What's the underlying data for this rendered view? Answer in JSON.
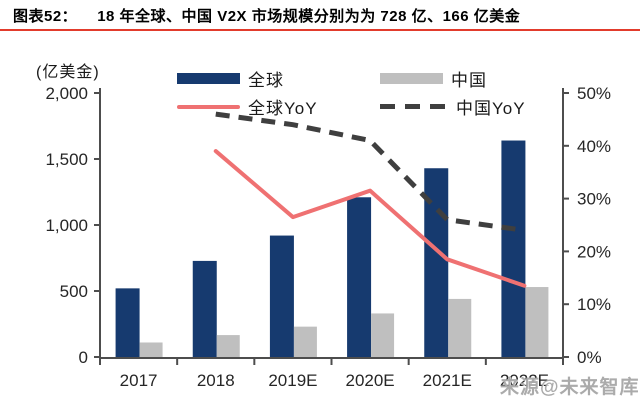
{
  "header": {
    "figure_label": "图表52：",
    "title_text": "18 年全球、中国 V2X 市场规模分别为为 728 亿、166 亿美金",
    "rule_color": "#E23B2C"
  },
  "axis_unit_label": "(亿美金)",
  "legend": {
    "items": [
      {
        "label": "全球",
        "type": "bar",
        "color": "#163A6F"
      },
      {
        "label": "中国",
        "type": "bar",
        "color": "#BFBFBF"
      },
      {
        "label": "全球YoY",
        "type": "line",
        "color": "#EF7172"
      },
      {
        "label": "中国YoY",
        "type": "dash",
        "color": "#3F3F3F"
      }
    ]
  },
  "watermark": {
    "text": "来源@未来智库"
  },
  "chart_data": {
    "type": "bar",
    "subtype": "bar-line combo, dual axis",
    "categories": [
      "2017",
      "2018",
      "2019E",
      "2020E",
      "2021E",
      "2022E"
    ],
    "series": [
      {
        "name": "全球",
        "type": "bar",
        "axis": "left",
        "color": "#163A6F",
        "values": [
          520,
          728,
          920,
          1210,
          1430,
          1640
        ]
      },
      {
        "name": "中国",
        "type": "bar",
        "axis": "left",
        "color": "#BFBFBF",
        "values": [
          110,
          166,
          230,
          330,
          440,
          530
        ]
      },
      {
        "name": "全球YoY",
        "type": "line",
        "axis": "right",
        "color": "#EF7172",
        "dashed": false,
        "unit": "%",
        "values": [
          null,
          39,
          26.5,
          31.5,
          18.5,
          13.5
        ]
      },
      {
        "name": "中国YoY",
        "type": "line",
        "axis": "right",
        "color": "#3F3F3F",
        "dashed": true,
        "unit": "%",
        "values": [
          null,
          46,
          44,
          41,
          26,
          24
        ]
      }
    ],
    "left_axis": {
      "unit": "亿美金",
      "min": 0,
      "max": 2000,
      "ticks": [
        "2,000",
        "1,500",
        "1,000",
        "500",
        "0"
      ]
    },
    "right_axis": {
      "unit": "%",
      "min": 0,
      "max": 50,
      "ticks": [
        "50%",
        "40%",
        "30%",
        "20%",
        "10%",
        "0%"
      ]
    },
    "grid": false,
    "legend_position": "top"
  }
}
